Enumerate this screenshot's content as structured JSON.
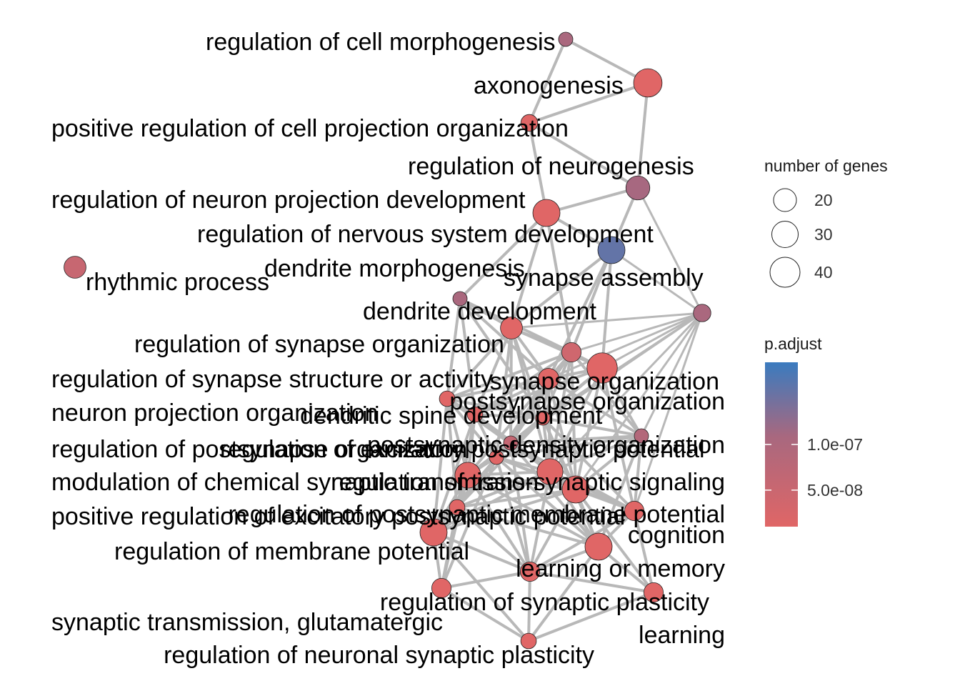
{
  "network": {
    "nodes": [
      {
        "id": "n1",
        "label": "regulation of cell morphogenesis",
        "size": 20,
        "p_adjust": 1.05e-07
      },
      {
        "id": "n2",
        "label": "axonogenesis",
        "size": 42,
        "p_adjust": 1e-08
      },
      {
        "id": "n3",
        "label": "positive regulation of cell projection organization",
        "size": 24,
        "p_adjust": 1e-08
      },
      {
        "id": "n4",
        "label": "regulation of neurogenesis",
        "size": 35,
        "p_adjust": 1.1e-07
      },
      {
        "id": "n5",
        "label": "regulation of neuron projection development",
        "size": 40,
        "p_adjust": 1e-08
      },
      {
        "id": "n6",
        "label": "regulation of nervous system development",
        "size": 40,
        "p_adjust": 1.6e-07
      },
      {
        "id": "n7",
        "label": "rhythmic process",
        "size": 32,
        "p_adjust": 5.5e-08
      },
      {
        "id": "n8",
        "label": "dendrite morphogenesis",
        "size": 20,
        "p_adjust": 1.05e-07
      },
      {
        "id": "n9",
        "label": "synapse assembly",
        "size": 25,
        "p_adjust": 1.05e-07
      },
      {
        "id": "n10",
        "label": "dendrite development",
        "size": 32,
        "p_adjust": 1e-08
      },
      {
        "id": "n11",
        "label": "regulation of synapse organization",
        "size": 28,
        "p_adjust": 4e-08
      },
      {
        "id": "n12",
        "label": "regulation of synapse structure or activity",
        "size": 30,
        "p_adjust": 1e-08
      },
      {
        "id": "n13",
        "label": "synapse organization",
        "size": 45,
        "p_adjust": 1e-08
      },
      {
        "id": "n14",
        "label": "neuron projection organization",
        "size": 22,
        "p_adjust": 1e-08
      },
      {
        "id": "n15",
        "label": "postsynapse organization",
        "size": 22,
        "p_adjust": 1e-08
      },
      {
        "id": "n16",
        "label": "dendritic spine development",
        "size": 20,
        "p_adjust": 1e-08
      },
      {
        "id": "n17",
        "label": "regulation of postsynapse organization",
        "size": 20,
        "p_adjust": 9e-08
      },
      {
        "id": "n18",
        "label": "regulation of excitatory postsynaptic potential",
        "size": 20,
        "p_adjust": 1e-08
      },
      {
        "id": "n19",
        "label": "postsynaptic density organization",
        "size": 20,
        "p_adjust": 6e-08
      },
      {
        "id": "n20",
        "label": "modulation of chemical synaptic transmission",
        "size": 38,
        "p_adjust": 1e-08
      },
      {
        "id": "n21",
        "label": "regulation of trans-synaptic signaling",
        "size": 38,
        "p_adjust": 1e-08
      },
      {
        "id": "n22",
        "label": "positive regulation of excitatory postsynaptic potential",
        "size": 22,
        "p_adjust": 1e-08
      },
      {
        "id": "n23",
        "label": "regulation of postsynaptic membrane potential",
        "size": 28,
        "p_adjust": 1e-08
      },
      {
        "id": "n24",
        "label": "cognition",
        "size": 40,
        "p_adjust": 1e-08
      },
      {
        "id": "n25",
        "label": "regulation of membrane potential",
        "size": 40,
        "p_adjust": 1e-08
      },
      {
        "id": "n26",
        "label": "learning or memory",
        "size": 40,
        "p_adjust": 1e-08
      },
      {
        "id": "n27",
        "label": "regulation of synaptic plasticity",
        "size": 28,
        "p_adjust": 1e-08
      },
      {
        "id": "n28",
        "label": "learning",
        "size": 28,
        "p_adjust": 1e-08
      },
      {
        "id": "n29",
        "label": "synaptic transmission, glutamatergic",
        "size": 28,
        "p_adjust": 1e-08
      },
      {
        "id": "n30",
        "label": "regulation of neuronal synaptic plasticity",
        "size": 22,
        "p_adjust": 1e-08
      }
    ]
  },
  "legend": {
    "size_title": "number of genes",
    "size_entries": [
      {
        "label": "20",
        "value": 20
      },
      {
        "label": "30",
        "value": 30
      },
      {
        "label": "40",
        "value": 40
      }
    ],
    "color_title": "p.adjust",
    "color_ticks": [
      {
        "label": "1.0e-07",
        "value": 1e-07
      },
      {
        "label": "5.0e-08",
        "value": 5e-08
      }
    ],
    "color_range": [
      1e-08,
      1.9e-07
    ],
    "color_low": "#e06666",
    "color_high": "#3a7bbf"
  },
  "colors": {
    "edge": "#b8b8b8",
    "label_text": "#000000",
    "node_outline": "#222222"
  }
}
